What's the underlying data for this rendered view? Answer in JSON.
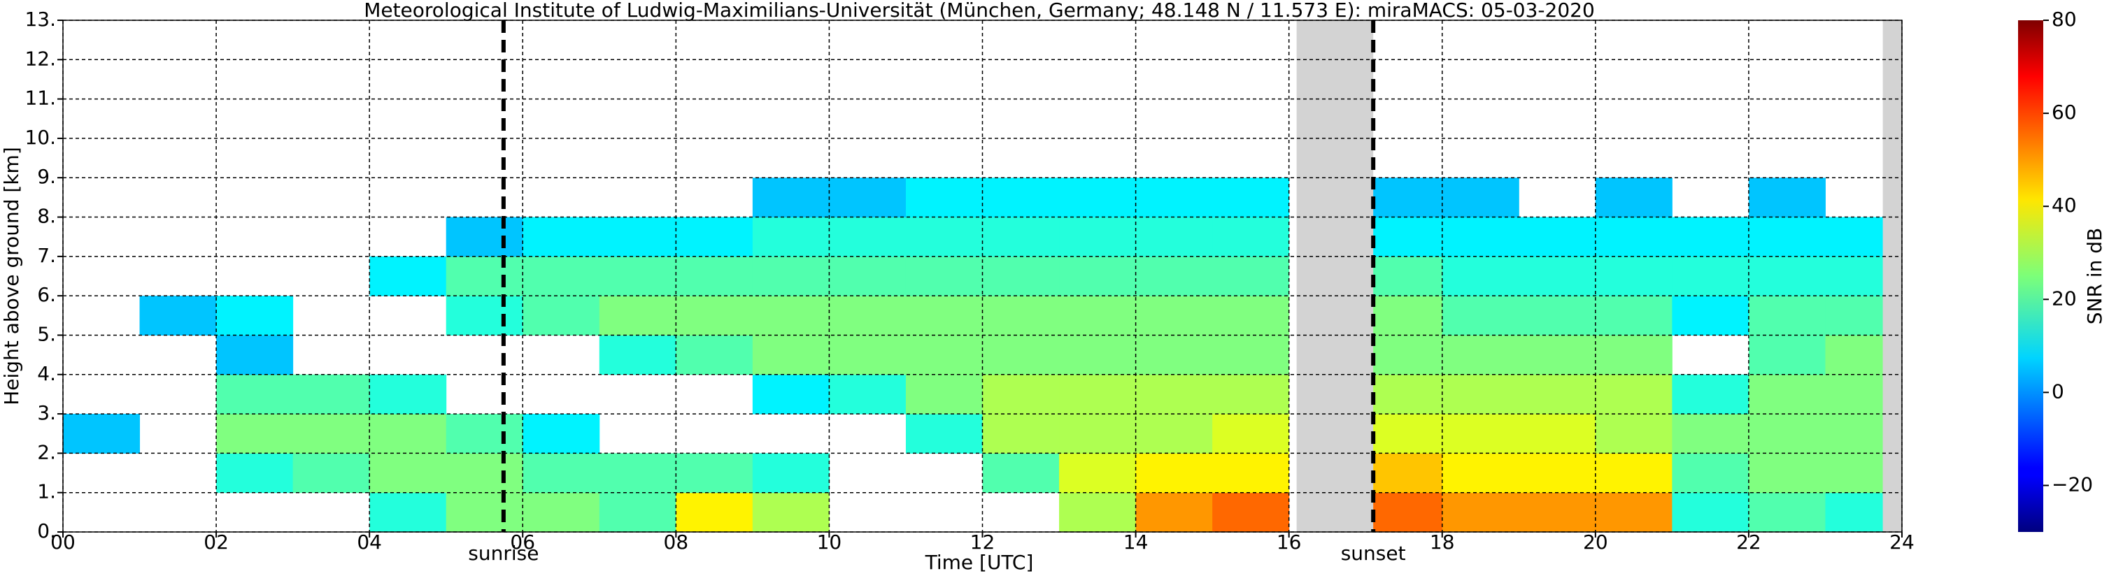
{
  "chart_data": {
    "type": "heatmap",
    "title": "Meteorological Institute of Ludwig-Maximilians-Universität (München, Germany; 48.148 N / 11.573 E):    miraMACS: 05-03-2020",
    "xlabel": "Time [UTC]",
    "ylabel": "Height above ground [km]",
    "xlim": [
      0,
      24
    ],
    "ylim": [
      0,
      13
    ],
    "xticks": [
      {
        "value": 0,
        "label": "00"
      },
      {
        "value": 2,
        "label": "02"
      },
      {
        "value": 4,
        "label": "04"
      },
      {
        "value": 6,
        "label": "06"
      },
      {
        "value": 8,
        "label": "08"
      },
      {
        "value": 10,
        "label": "10"
      },
      {
        "value": 12,
        "label": "12"
      },
      {
        "value": 14,
        "label": "14"
      },
      {
        "value": 16,
        "label": "16"
      },
      {
        "value": 18,
        "label": "18"
      },
      {
        "value": 20,
        "label": "20"
      },
      {
        "value": 22,
        "label": "22"
      },
      {
        "value": 24,
        "label": "24"
      }
    ],
    "yticks": [
      {
        "value": 0,
        "label": "0."
      },
      {
        "value": 1,
        "label": "1."
      },
      {
        "value": 2,
        "label": "2."
      },
      {
        "value": 3,
        "label": "3."
      },
      {
        "value": 4,
        "label": "4."
      },
      {
        "value": 5,
        "label": "5."
      },
      {
        "value": 6,
        "label": "6."
      },
      {
        "value": 7,
        "label": "7."
      },
      {
        "value": 8,
        "label": "8."
      },
      {
        "value": 9,
        "label": "9."
      },
      {
        "value": 10,
        "label": "10."
      },
      {
        "value": 11,
        "label": "11."
      },
      {
        "value": 12,
        "label": "12."
      },
      {
        "value": 13,
        "label": "13."
      }
    ],
    "grid": true,
    "x_bins": [
      0,
      1,
      2,
      3,
      4,
      5,
      6,
      7,
      8,
      9,
      10,
      11,
      12,
      13,
      14,
      15,
      16,
      17,
      18,
      19,
      20,
      21,
      22,
      23,
      24
    ],
    "y_bins": [
      0,
      1,
      2,
      3,
      4,
      5,
      6,
      7,
      8,
      9
    ],
    "values": [
      [
        null,
        null,
        null,
        null,
        15,
        25,
        25,
        20,
        40,
        30,
        null,
        null,
        null,
        30,
        50,
        55,
        null,
        55,
        50,
        50,
        50,
        15,
        20,
        15
      ],
      [
        null,
        null,
        15,
        20,
        25,
        25,
        20,
        20,
        20,
        15,
        null,
        null,
        20,
        35,
        40,
        40,
        null,
        45,
        40,
        40,
        40,
        20,
        25,
        25
      ],
      [
        5,
        null,
        25,
        25,
        25,
        20,
        10,
        null,
        null,
        null,
        null,
        15,
        30,
        30,
        30,
        35,
        null,
        35,
        35,
        35,
        30,
        25,
        25,
        25
      ],
      [
        null,
        null,
        20,
        20,
        15,
        null,
        null,
        null,
        null,
        10,
        15,
        25,
        30,
        30,
        30,
        30,
        null,
        30,
        30,
        30,
        30,
        15,
        25,
        25
      ],
      [
        null,
        null,
        5,
        null,
        null,
        null,
        null,
        15,
        20,
        25,
        25,
        25,
        25,
        25,
        25,
        25,
        null,
        25,
        25,
        25,
        25,
        null,
        20,
        25
      ],
      [
        null,
        5,
        10,
        null,
        null,
        15,
        20,
        25,
        25,
        25,
        25,
        25,
        25,
        25,
        25,
        25,
        null,
        25,
        20,
        20,
        20,
        10,
        20,
        20
      ],
      [
        null,
        null,
        null,
        null,
        10,
        20,
        20,
        20,
        20,
        20,
        20,
        20,
        20,
        20,
        20,
        20,
        null,
        20,
        15,
        15,
        15,
        15,
        15,
        15
      ],
      [
        null,
        null,
        null,
        null,
        null,
        5,
        10,
        10,
        10,
        15,
        15,
        15,
        15,
        15,
        15,
        15,
        null,
        10,
        10,
        10,
        10,
        10,
        10,
        10
      ],
      [
        null,
        null,
        null,
        null,
        null,
        null,
        null,
        null,
        null,
        5,
        5,
        10,
        10,
        10,
        10,
        10,
        null,
        5,
        5,
        null,
        5,
        null,
        5,
        null
      ]
    ],
    "gaps": [
      [
        16.1,
        17.1
      ],
      [
        23.75,
        24
      ]
    ],
    "gap_color": "#d3d3d3",
    "annotations": [
      {
        "text": "sunrise",
        "x": 5.75
      },
      {
        "text": "sunset",
        "x": 17.1
      }
    ],
    "clim": [
      -30,
      80
    ],
    "cticks": [
      {
        "value": -20,
        "label": "−20"
      },
      0,
      20,
      40,
      60,
      80
    ],
    "clabel": "SNR in dB"
  }
}
